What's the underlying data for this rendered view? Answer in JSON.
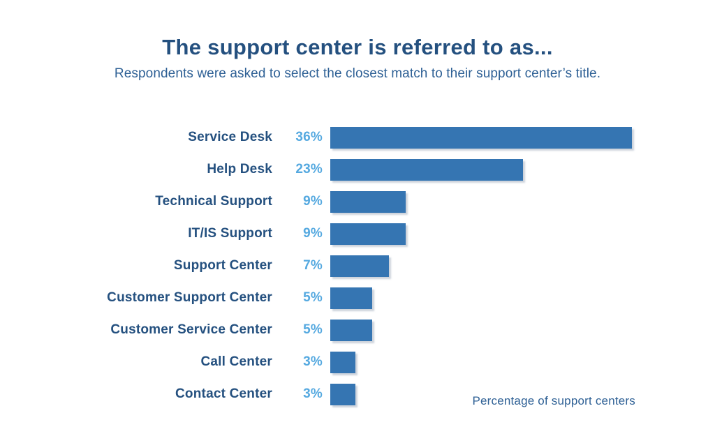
{
  "page": {
    "background_color": "#ffffff"
  },
  "header": {
    "title": "The support center is referred to as...",
    "subtitle": "Respondents were asked to select the closest match to their support center’s title."
  },
  "chart_data": {
    "type": "bar",
    "orientation": "horizontal",
    "title": "The support center is referred to as...",
    "subtitle": "Respondents were asked to select the closest match to their support center’s title.",
    "categories": [
      "Service Desk",
      "Help Desk",
      "Technical Support",
      "IT/IS Support",
      "Support Center",
      "Customer Support Center",
      "Customer Service Center",
      "Call Center",
      "Contact Center"
    ],
    "values": [
      36,
      23,
      9,
      9,
      7,
      5,
      5,
      3,
      3
    ],
    "value_labels": [
      "36%",
      "23%",
      "9%",
      "9%",
      "7%",
      "5%",
      "5%",
      "3%",
      "3%"
    ],
    "xlabel": "Percentage of support centers",
    "ylabel": "",
    "xlim": [
      0,
      36
    ],
    "grid": false,
    "legend": null,
    "bar_color": "#3575b2",
    "bar_shadow_color": "#adb8c5",
    "category_label_color": "#24507f",
    "value_label_color": "#55a9e0",
    "title_color": "#24507f"
  },
  "footer": {
    "axis_note": "Percentage of support centers"
  }
}
